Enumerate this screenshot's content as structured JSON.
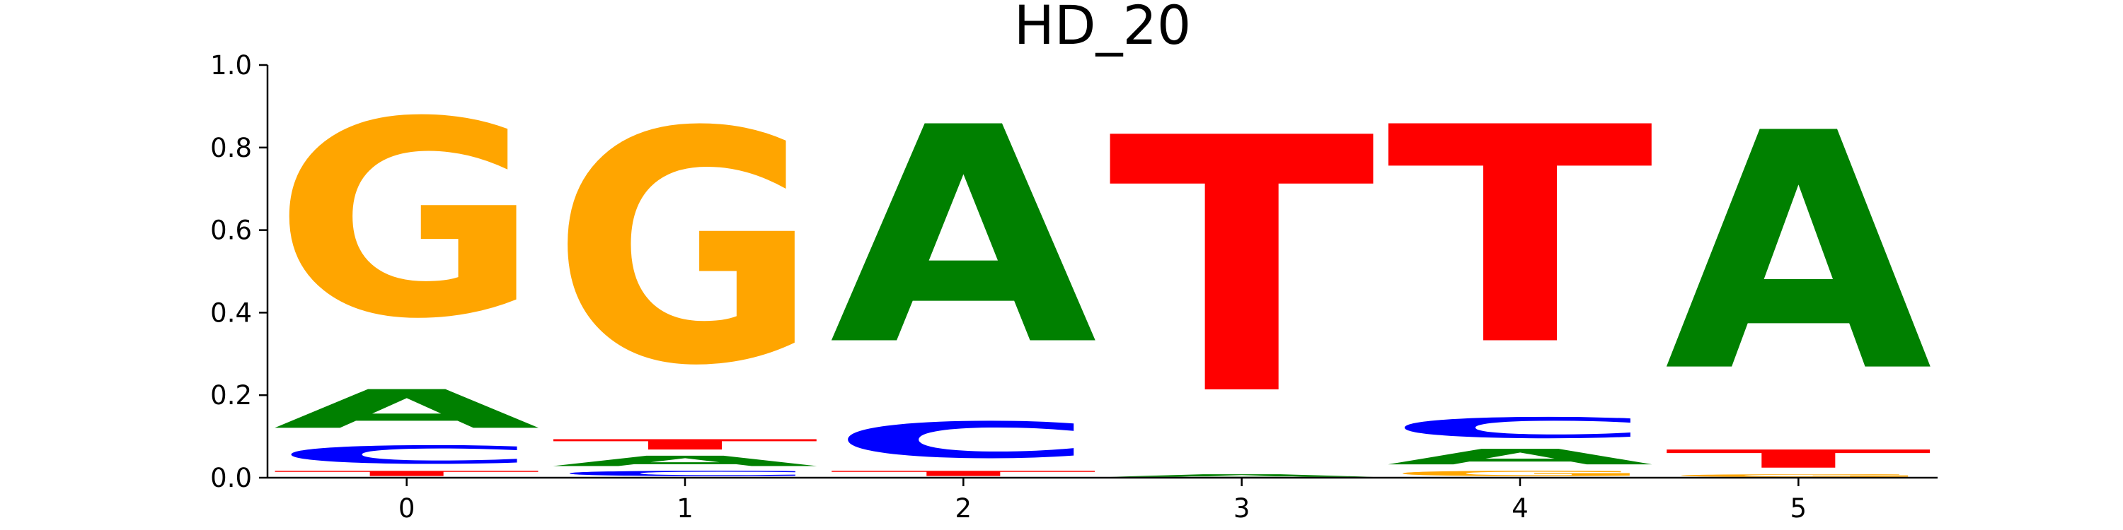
{
  "chart_data": {
    "type": "sequence-logo",
    "title": "HD_20",
    "xlabel": "",
    "ylabel": "",
    "ylim": [
      0,
      1
    ],
    "y_ticks": [
      "0.0",
      "0.2",
      "0.4",
      "0.6",
      "0.8",
      "1.0"
    ],
    "x_ticks": [
      "0",
      "1",
      "2",
      "3",
      "4",
      "5"
    ],
    "grid": false,
    "colors": {
      "A": "#008000",
      "C": "#0000ff",
      "G": "#ffa500",
      "T": "#ff0000"
    },
    "positions": [
      {
        "position": "0",
        "stack": [
          {
            "letter": "T",
            "value": 0.02
          },
          {
            "letter": "C",
            "value": 0.07
          },
          {
            "letter": "A",
            "value": 0.15
          },
          {
            "letter": "G",
            "value": 0.76
          }
        ]
      },
      {
        "position": "1",
        "stack": [
          {
            "letter": "C",
            "value": 0.02
          },
          {
            "letter": "A",
            "value": 0.04
          },
          {
            "letter": "T",
            "value": 0.04
          },
          {
            "letter": "G",
            "value": 0.9
          }
        ]
      },
      {
        "position": "2",
        "stack": [
          {
            "letter": "T",
            "value": 0.02
          },
          {
            "letter": "C",
            "value": 0.14
          },
          {
            "letter": "A",
            "value": 0.84
          }
        ]
      },
      {
        "position": "3",
        "stack": [
          {
            "letter": "A",
            "value": 0.01
          },
          {
            "letter": "T",
            "value": 0.99
          }
        ]
      },
      {
        "position": "4",
        "stack": [
          {
            "letter": "G",
            "value": 0.02
          },
          {
            "letter": "A",
            "value": 0.06
          },
          {
            "letter": "C",
            "value": 0.08
          },
          {
            "letter": "T",
            "value": 0.84
          }
        ]
      },
      {
        "position": "5",
        "stack": [
          {
            "letter": "G",
            "value": 0.01
          },
          {
            "letter": "T",
            "value": 0.07
          },
          {
            "letter": "A",
            "value": 0.92
          }
        ]
      }
    ]
  }
}
